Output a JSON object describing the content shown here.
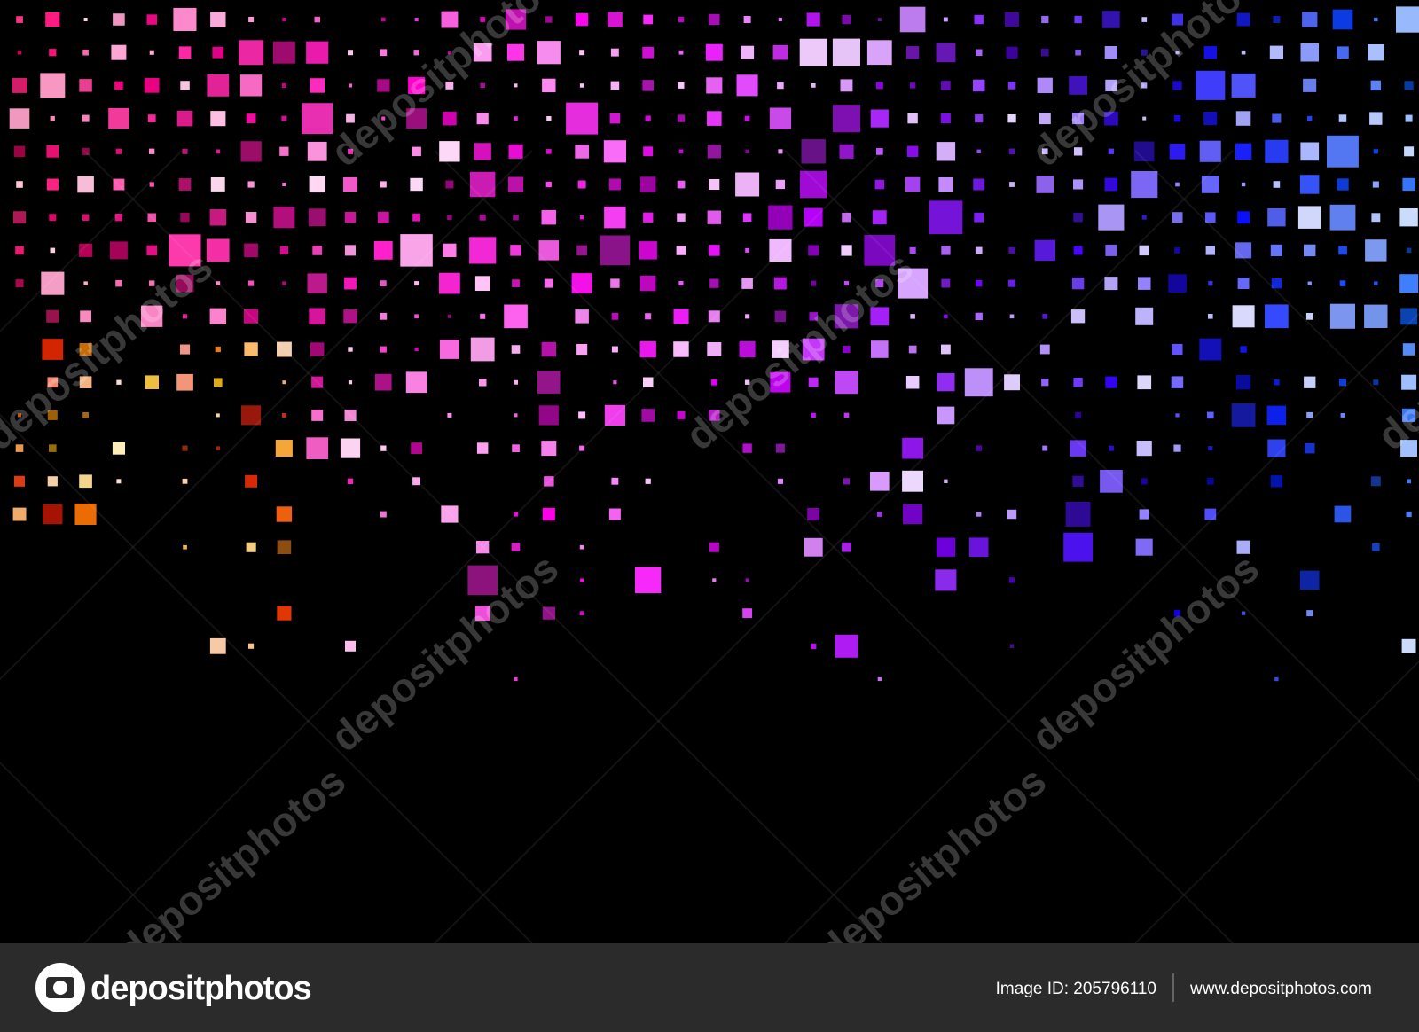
{
  "watermark": "depositphotos",
  "footer": {
    "logo": "depositphotos",
    "image_id": "Image ID: 205796110",
    "url": "www.depositphotos.com"
  }
}
